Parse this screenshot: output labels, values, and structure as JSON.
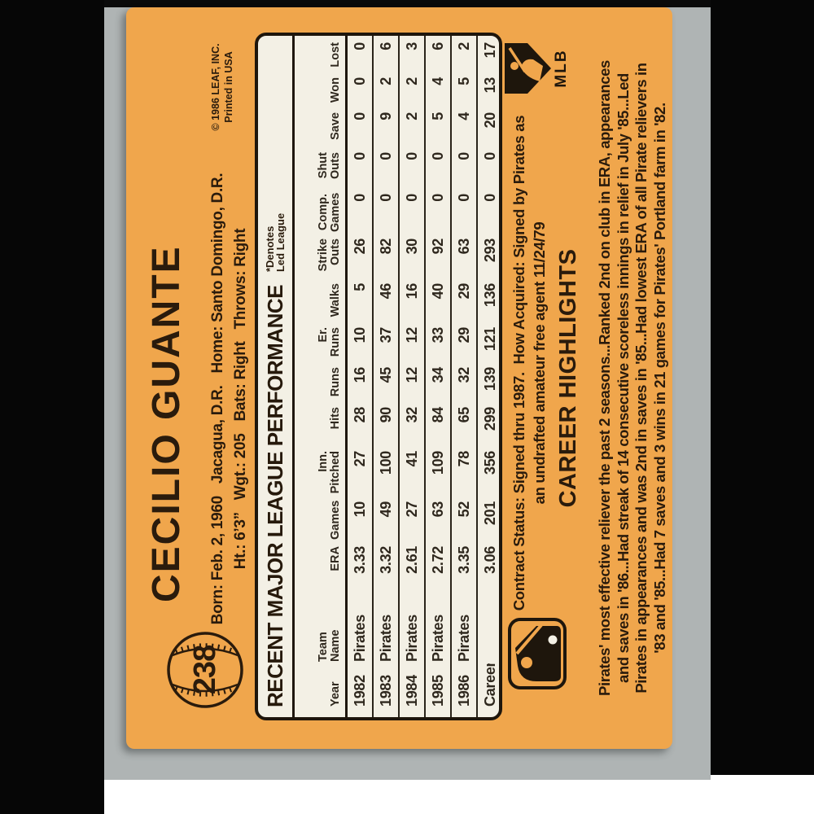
{
  "card": {
    "number": "238",
    "player_name": "CECILIO GUANTE",
    "bio_line1": "Born: Feb. 2, 1960   Jacagua, D.R.   Home: Santo Domingo, D.R.",
    "bio_line2": "Ht.: 6’3”   Wgt.: 205   Bats: Right   Throws: Right",
    "copyright_line1": "© 1986 LEAF, INC.",
    "copyright_line2": "Printed in USA",
    "contract_line1": "Contract Status: Signed thru 1987.  How Acquired: Signed by Pirates as",
    "contract_line2": "an undrafted amateur free agent 11/24/79",
    "career_highlights_title": "CAREER HIGHLIGHTS",
    "career_highlights": [
      "Pirates' most effective reliever the past 2 seasons...Ranked 2nd on club in ERA, appearances",
      "and saves in '86...Had streak of 14 consecutive scoreless innings in relief in July '85...Led",
      "Pirates in appearances and was 2nd in saves in '85...Had lowest ERA of all Pirate relievers in",
      "'83 and '85...Had 7 saves and 3 wins in 21 games for Pirates' Portland farm in '82."
    ]
  },
  "table": {
    "title": "RECENT MAJOR LEAGUE PERFORMANCE",
    "note_line1": "*Denotes",
    "note_line2": "Led League",
    "headers": [
      {
        "top": "",
        "bottom": "Year"
      },
      {
        "top": "Team",
        "bottom": "Name"
      },
      {
        "top": "",
        "bottom": "ERA"
      },
      {
        "top": "",
        "bottom": "Games"
      },
      {
        "top": "Inn.",
        "bottom": "Pitched"
      },
      {
        "top": "",
        "bottom": "Hits"
      },
      {
        "top": "",
        "bottom": "Runs"
      },
      {
        "top": "Er.",
        "bottom": "Runs"
      },
      {
        "top": "",
        "bottom": "Walks"
      },
      {
        "top": "Strike",
        "bottom": "Outs"
      },
      {
        "top": "Comp.",
        "bottom": "Games"
      },
      {
        "top": "Shut",
        "bottom": "Outs"
      },
      {
        "top": "",
        "bottom": "Save"
      },
      {
        "top": "",
        "bottom": "Won"
      },
      {
        "top": "",
        "bottom": "Lost"
      }
    ],
    "rows": [
      [
        "1982",
        "Pirates",
        "3.33",
        "10",
        "27",
        "28",
        "16",
        "10",
        "5",
        "26",
        "0",
        "0",
        "0",
        "0",
        "0"
      ],
      [
        "1983",
        "Pirates",
        "3.32",
        "49",
        "100",
        "90",
        "45",
        "37",
        "46",
        "82",
        "0",
        "0",
        "9",
        "2",
        "6"
      ],
      [
        "1984",
        "Pirates",
        "2.61",
        "27",
        "41",
        "32",
        "12",
        "12",
        "16",
        "30",
        "0",
        "0",
        "2",
        "2",
        "3"
      ],
      [
        "1985",
        "Pirates",
        "2.72",
        "63",
        "109",
        "84",
        "34",
        "33",
        "40",
        "92",
        "0",
        "0",
        "5",
        "4",
        "6"
      ],
      [
        "1986",
        "Pirates",
        "3.35",
        "52",
        "78",
        "65",
        "32",
        "29",
        "29",
        "63",
        "0",
        "0",
        "4",
        "5",
        "2"
      ],
      [
        "Career",
        "",
        "3.06",
        "201",
        "356",
        "299",
        "139",
        "121",
        "136",
        "293",
        "0",
        "0",
        "20",
        "13",
        "17"
      ]
    ]
  },
  "logos": {
    "mlb_label": "MLB"
  },
  "colors": {
    "card_orange": "#f0a64c",
    "table_cream": "#f3f0e5",
    "ink": "#2a1b0c",
    "mat_gray": "#afb4b4",
    "photo_black": "#060606"
  }
}
